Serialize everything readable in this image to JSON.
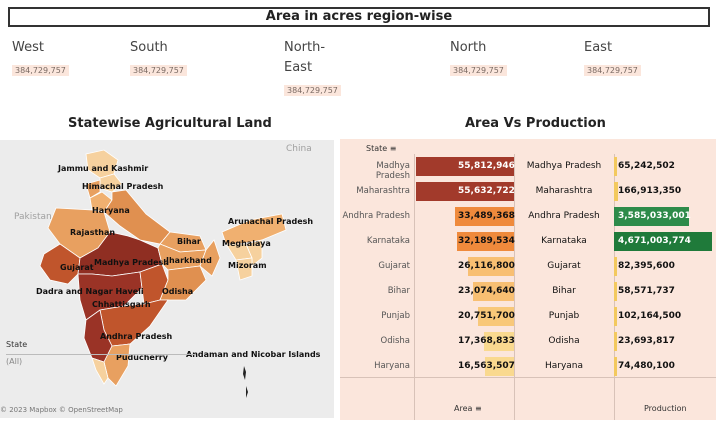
{
  "title": "Area in acres region-wise",
  "regions": [
    {
      "name": "West",
      "value": "384,729,757"
    },
    {
      "name": "South",
      "value": "384,729,757"
    },
    {
      "name": "North-\nEast",
      "value": "384,729,757"
    },
    {
      "name": "North",
      "value": "384,729,757"
    },
    {
      "name": "East",
      "value": "384,729,757"
    }
  ],
  "map": {
    "title": "Statewise Agricultural Land",
    "geo_labels": {
      "pakistan": "Pakistan",
      "china": "China"
    },
    "state_labels": [
      "Jammu and Kashmir",
      "Himachal Pradesh",
      "Haryana",
      "Rajasthan",
      "Arunachal Pradesh",
      "Bihar",
      "Meghalaya",
      "Jharkhand",
      "Gujarat",
      "Madhya Pradesh",
      "Mizoram",
      "Dadra and Nagar Haveli",
      "Odisha",
      "Chhattisgarh",
      "Andhra Pradesh",
      "Puducherry",
      "Andaman and Nicobar Islands"
    ],
    "filter_label": "State",
    "filter_value": "(All)",
    "credit": "© 2023 Mapbox  © OpenStreetMap",
    "colors": {
      "low": "#f6d19e",
      "mid": "#e8a060",
      "high": "#c0552c",
      "max": "#8f2e22"
    }
  },
  "area_vs_production": {
    "title": "Area Vs Production",
    "state_header": "State",
    "area_header": "Area",
    "production_header": "Production",
    "rows": [
      {
        "state": "Madhya Pradesh",
        "area": "55,812,946",
        "area_num": 55812946,
        "production": "65,242,502",
        "prod_num": 65242502
      },
      {
        "state": "Maharashtra",
        "area": "55,632,722",
        "area_num": 55632722,
        "production": "166,913,350",
        "prod_num": 166913350
      },
      {
        "state": "Andhra Pradesh",
        "area": "33,489,368",
        "area_num": 33489368,
        "production": "3,585,033,001",
        "prod_num": 3585033001
      },
      {
        "state": "Karnataka",
        "area": "32,189,534",
        "area_num": 32189534,
        "production": "4,671,003,774",
        "prod_num": 4671003774
      },
      {
        "state": "Gujarat",
        "area": "26,116,800",
        "area_num": 26116800,
        "production": "82,395,600",
        "prod_num": 82395600
      },
      {
        "state": "Bihar",
        "area": "23,074,640",
        "area_num": 23074640,
        "production": "58,571,737",
        "prod_num": 58571737
      },
      {
        "state": "Punjab",
        "area": "20,751,700",
        "area_num": 20751700,
        "production": "102,164,500",
        "prod_num": 102164500
      },
      {
        "state": "Odisha",
        "area": "17,368,833",
        "area_num": 17368833,
        "production": "23,693,817",
        "prod_num": 23693817
      },
      {
        "state": "Haryana",
        "area": "16,563,507",
        "area_num": 16563507,
        "production": "74,480,100",
        "prod_num": 74480100
      }
    ],
    "colors": {
      "area": [
        "#a23a2b",
        "#a23a2b",
        "#ef8a3c",
        "#ef8a3c",
        "#f8bf72",
        "#f8bf72",
        "#f8c879",
        "#f9d98f",
        "#f9d98f"
      ],
      "prod_high": "#1f7a3a",
      "prod_mid": "#2e8b4a",
      "prod_low": "#f3c95e"
    }
  }
}
